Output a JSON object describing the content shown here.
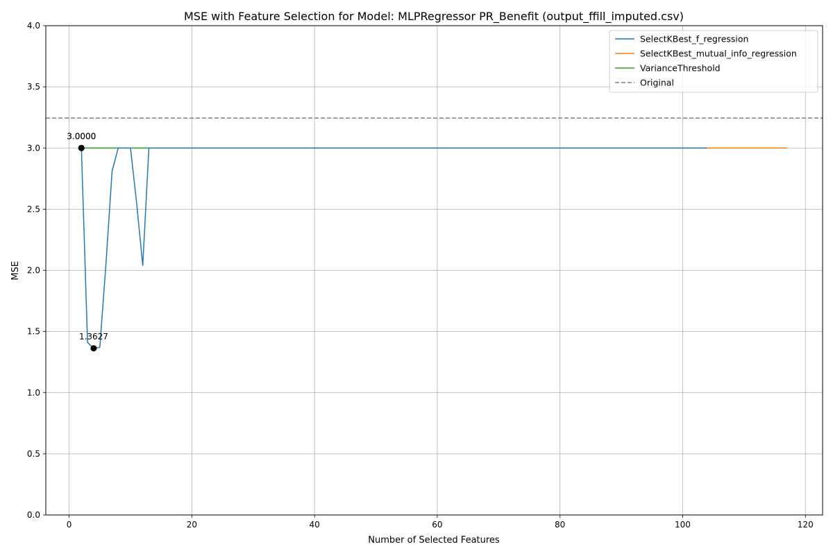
{
  "chart_data": {
    "type": "line",
    "title": "MSE with Feature Selection for Model: MLPRegressor PR_Benefit (output_ffill_imputed.csv)",
    "xlabel": "Number of Selected Features",
    "ylabel": "MSE",
    "xlim": [
      -3.8,
      122.8
    ],
    "ylim": [
      0,
      4
    ],
    "xticks": [
      0,
      20,
      40,
      60,
      80,
      100,
      120
    ],
    "xtick_labels": [
      "0",
      "20",
      "40",
      "60",
      "80",
      "100",
      "120"
    ],
    "yticks": [
      0,
      0.5,
      1,
      1.5,
      2,
      2.5,
      3,
      3.5,
      4
    ],
    "ytick_labels": [
      "0.0",
      "0.5",
      "1.0",
      "1.5",
      "2.0",
      "2.5",
      "3.0",
      "3.5",
      "4.0"
    ],
    "grid": true,
    "legend_position": "top-right",
    "series": [
      {
        "name": "SelectKBest_f_regression",
        "color": "#1f77b4",
        "style": "solid",
        "x": [
          2,
          3,
          4,
          5,
          6,
          7,
          8,
          9,
          10,
          11,
          12,
          13,
          14,
          20,
          40,
          60,
          80,
          100,
          104
        ],
        "y": [
          3.0,
          1.41,
          1.3627,
          1.37,
          2.05,
          2.81,
          3.0,
          3.0,
          3.0,
          2.55,
          2.04,
          3.0,
          3.0,
          3.0,
          3.0,
          3.0,
          3.0,
          3.0,
          3.0
        ]
      },
      {
        "name": "SelectKBest_mutual_info_regression",
        "color": "#ff7f0e",
        "style": "solid",
        "x": [
          2,
          20,
          40,
          60,
          80,
          100,
          117
        ],
        "y": [
          3.0,
          3.0,
          3.0,
          3.0,
          3.0,
          3.0,
          3.0
        ]
      },
      {
        "name": "VarianceThreshold",
        "color": "#2ca02c",
        "style": "solid",
        "x": [
          2,
          20,
          40,
          60,
          80,
          100,
          104
        ],
        "y": [
          3.0,
          3.0,
          3.0,
          3.0,
          3.0,
          3.0,
          3.0
        ]
      }
    ],
    "reference_line": {
      "name": "Original",
      "color": "#7f7f7f",
      "style": "dashed",
      "y": 3.245
    },
    "annotations": [
      {
        "x": 2,
        "y": 3.0,
        "label": "3.0000"
      },
      {
        "x": 2,
        "y": 3.0,
        "label": "3.0000"
      },
      {
        "x": 4,
        "y": 1.3627,
        "label": "1.3627"
      }
    ]
  }
}
